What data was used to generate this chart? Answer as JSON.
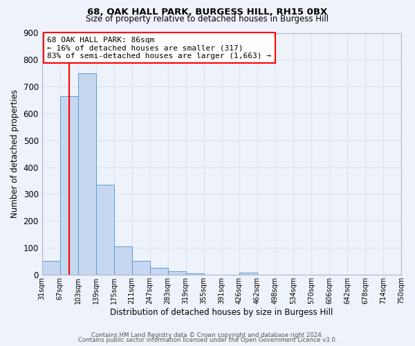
{
  "title": "68, OAK HALL PARK, BURGESS HILL, RH15 0BX",
  "subtitle": "Size of property relative to detached houses in Burgess Hill",
  "xlabel": "Distribution of detached houses by size in Burgess Hill",
  "ylabel": "Number of detached properties",
  "bin_labels": [
    "31sqm",
    "67sqm",
    "103sqm",
    "139sqm",
    "175sqm",
    "211sqm",
    "247sqm",
    "283sqm",
    "319sqm",
    "355sqm",
    "391sqm",
    "426sqm",
    "462sqm",
    "498sqm",
    "534sqm",
    "570sqm",
    "606sqm",
    "642sqm",
    "678sqm",
    "714sqm",
    "750sqm"
  ],
  "bar_values": [
    50,
    665,
    750,
    335,
    105,
    50,
    25,
    13,
    5,
    0,
    0,
    8,
    0,
    0,
    0,
    0,
    0,
    0,
    0,
    0
  ],
  "annotation_title": "68 OAK HALL PARK: 86sqm",
  "annotation_line1": "← 16% of detached houses are smaller (317)",
  "annotation_line2": "83% of semi-detached houses are larger (1,663) →",
  "bar_color": "#c5d8f0",
  "bar_edge_color": "#5b9bd5",
  "vline_color": "red",
  "annotation_box_edge": "red",
  "background_color": "#eef2fa",
  "grid_color": "#d8e4f0",
  "ylim": [
    0,
    900
  ],
  "yticks": [
    0,
    100,
    200,
    300,
    400,
    500,
    600,
    700,
    800,
    900
  ],
  "footer1": "Contains HM Land Registry data © Crown copyright and database right 2024.",
  "footer2": "Contains public sector information licensed under the Open Government Licence v3.0.",
  "bin_edges": [
    31,
    67,
    103,
    139,
    175,
    211,
    247,
    283,
    319,
    355,
    391,
    426,
    462,
    498,
    534,
    570,
    606,
    642,
    678,
    714,
    750
  ],
  "vline_x": 86
}
